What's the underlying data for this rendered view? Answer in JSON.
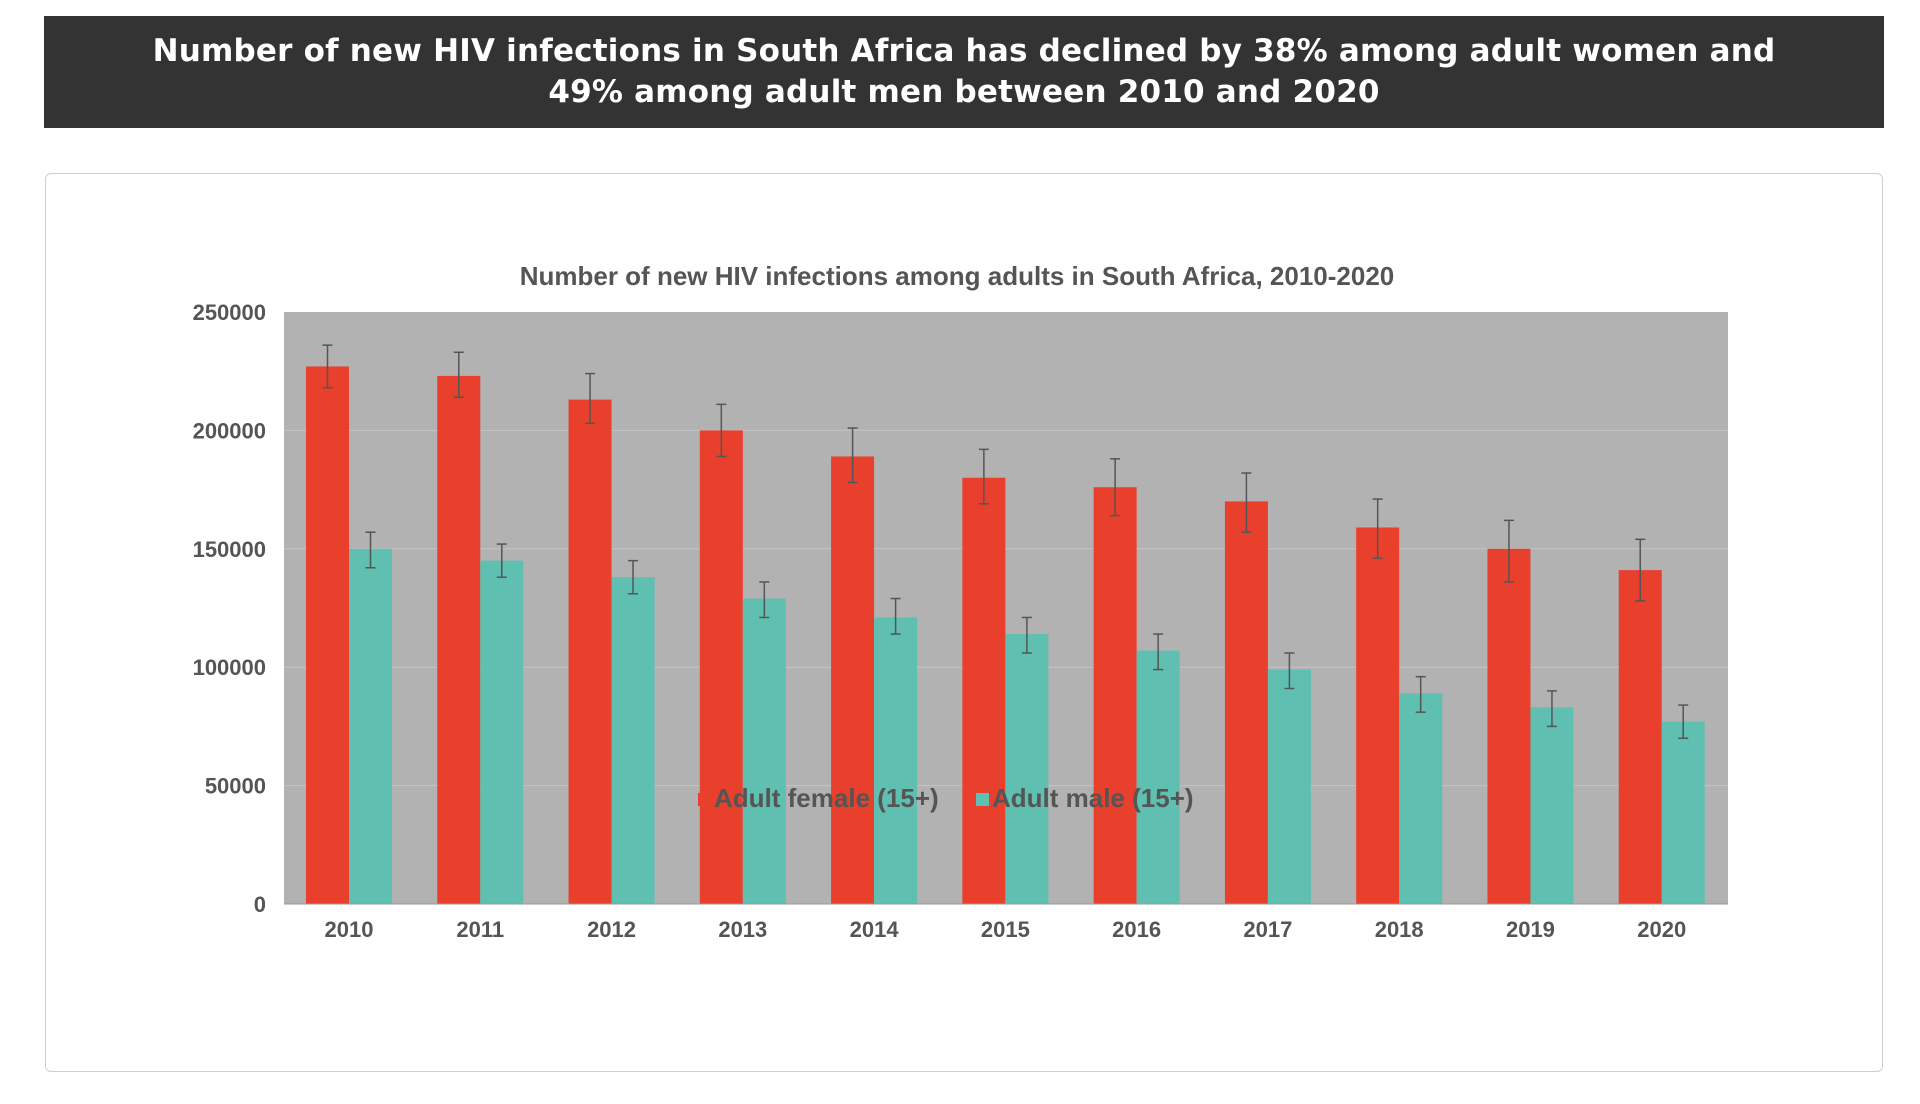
{
  "header": {
    "title": "Number of new HIV infections in South Africa has declined by 38% among adult women and 49% among adult men between 2010 and 2020"
  },
  "colors": {
    "banner_background": "#333333",
    "plot_background": "#b2b2b2",
    "female": "#e8402c",
    "male": "#5fbfb0",
    "error_bar": "#555555"
  },
  "chart_data": {
    "type": "bar",
    "title": "Number of new HIV infections among adults in South Africa, 2010-2020",
    "xlabel": "",
    "ylabel": "",
    "ylim": [
      0,
      250000
    ],
    "yticks": [
      "0",
      "50000",
      "100000",
      "150000",
      "200000",
      "250000"
    ],
    "grid": true,
    "legend_position": "bottom",
    "categories": [
      "2010",
      "2011",
      "2012",
      "2013",
      "2014",
      "2015",
      "2016",
      "2017",
      "2018",
      "2019",
      "2020"
    ],
    "series": [
      {
        "name": "Adult female (15+)",
        "color": "#e8402c",
        "values": [
          227000,
          223000,
          213000,
          200000,
          189000,
          180000,
          176000,
          170000,
          159000,
          150000,
          141000
        ],
        "error_low": [
          218000,
          214000,
          203000,
          189000,
          178000,
          169000,
          164000,
          157000,
          146000,
          136000,
          128000
        ],
        "error_high": [
          236000,
          233000,
          224000,
          211000,
          201000,
          192000,
          188000,
          182000,
          171000,
          162000,
          154000
        ]
      },
      {
        "name": "Adult male (15+)",
        "color": "#5fbfb0",
        "values": [
          150000,
          145000,
          138000,
          129000,
          121000,
          114000,
          107000,
          99000,
          89000,
          83000,
          77000
        ],
        "error_low": [
          142000,
          138000,
          131000,
          121000,
          114000,
          106000,
          99000,
          91000,
          81000,
          75000,
          70000
        ],
        "error_high": [
          157000,
          152000,
          145000,
          136000,
          129000,
          121000,
          114000,
          106000,
          96000,
          90000,
          84000
        ]
      }
    ]
  }
}
